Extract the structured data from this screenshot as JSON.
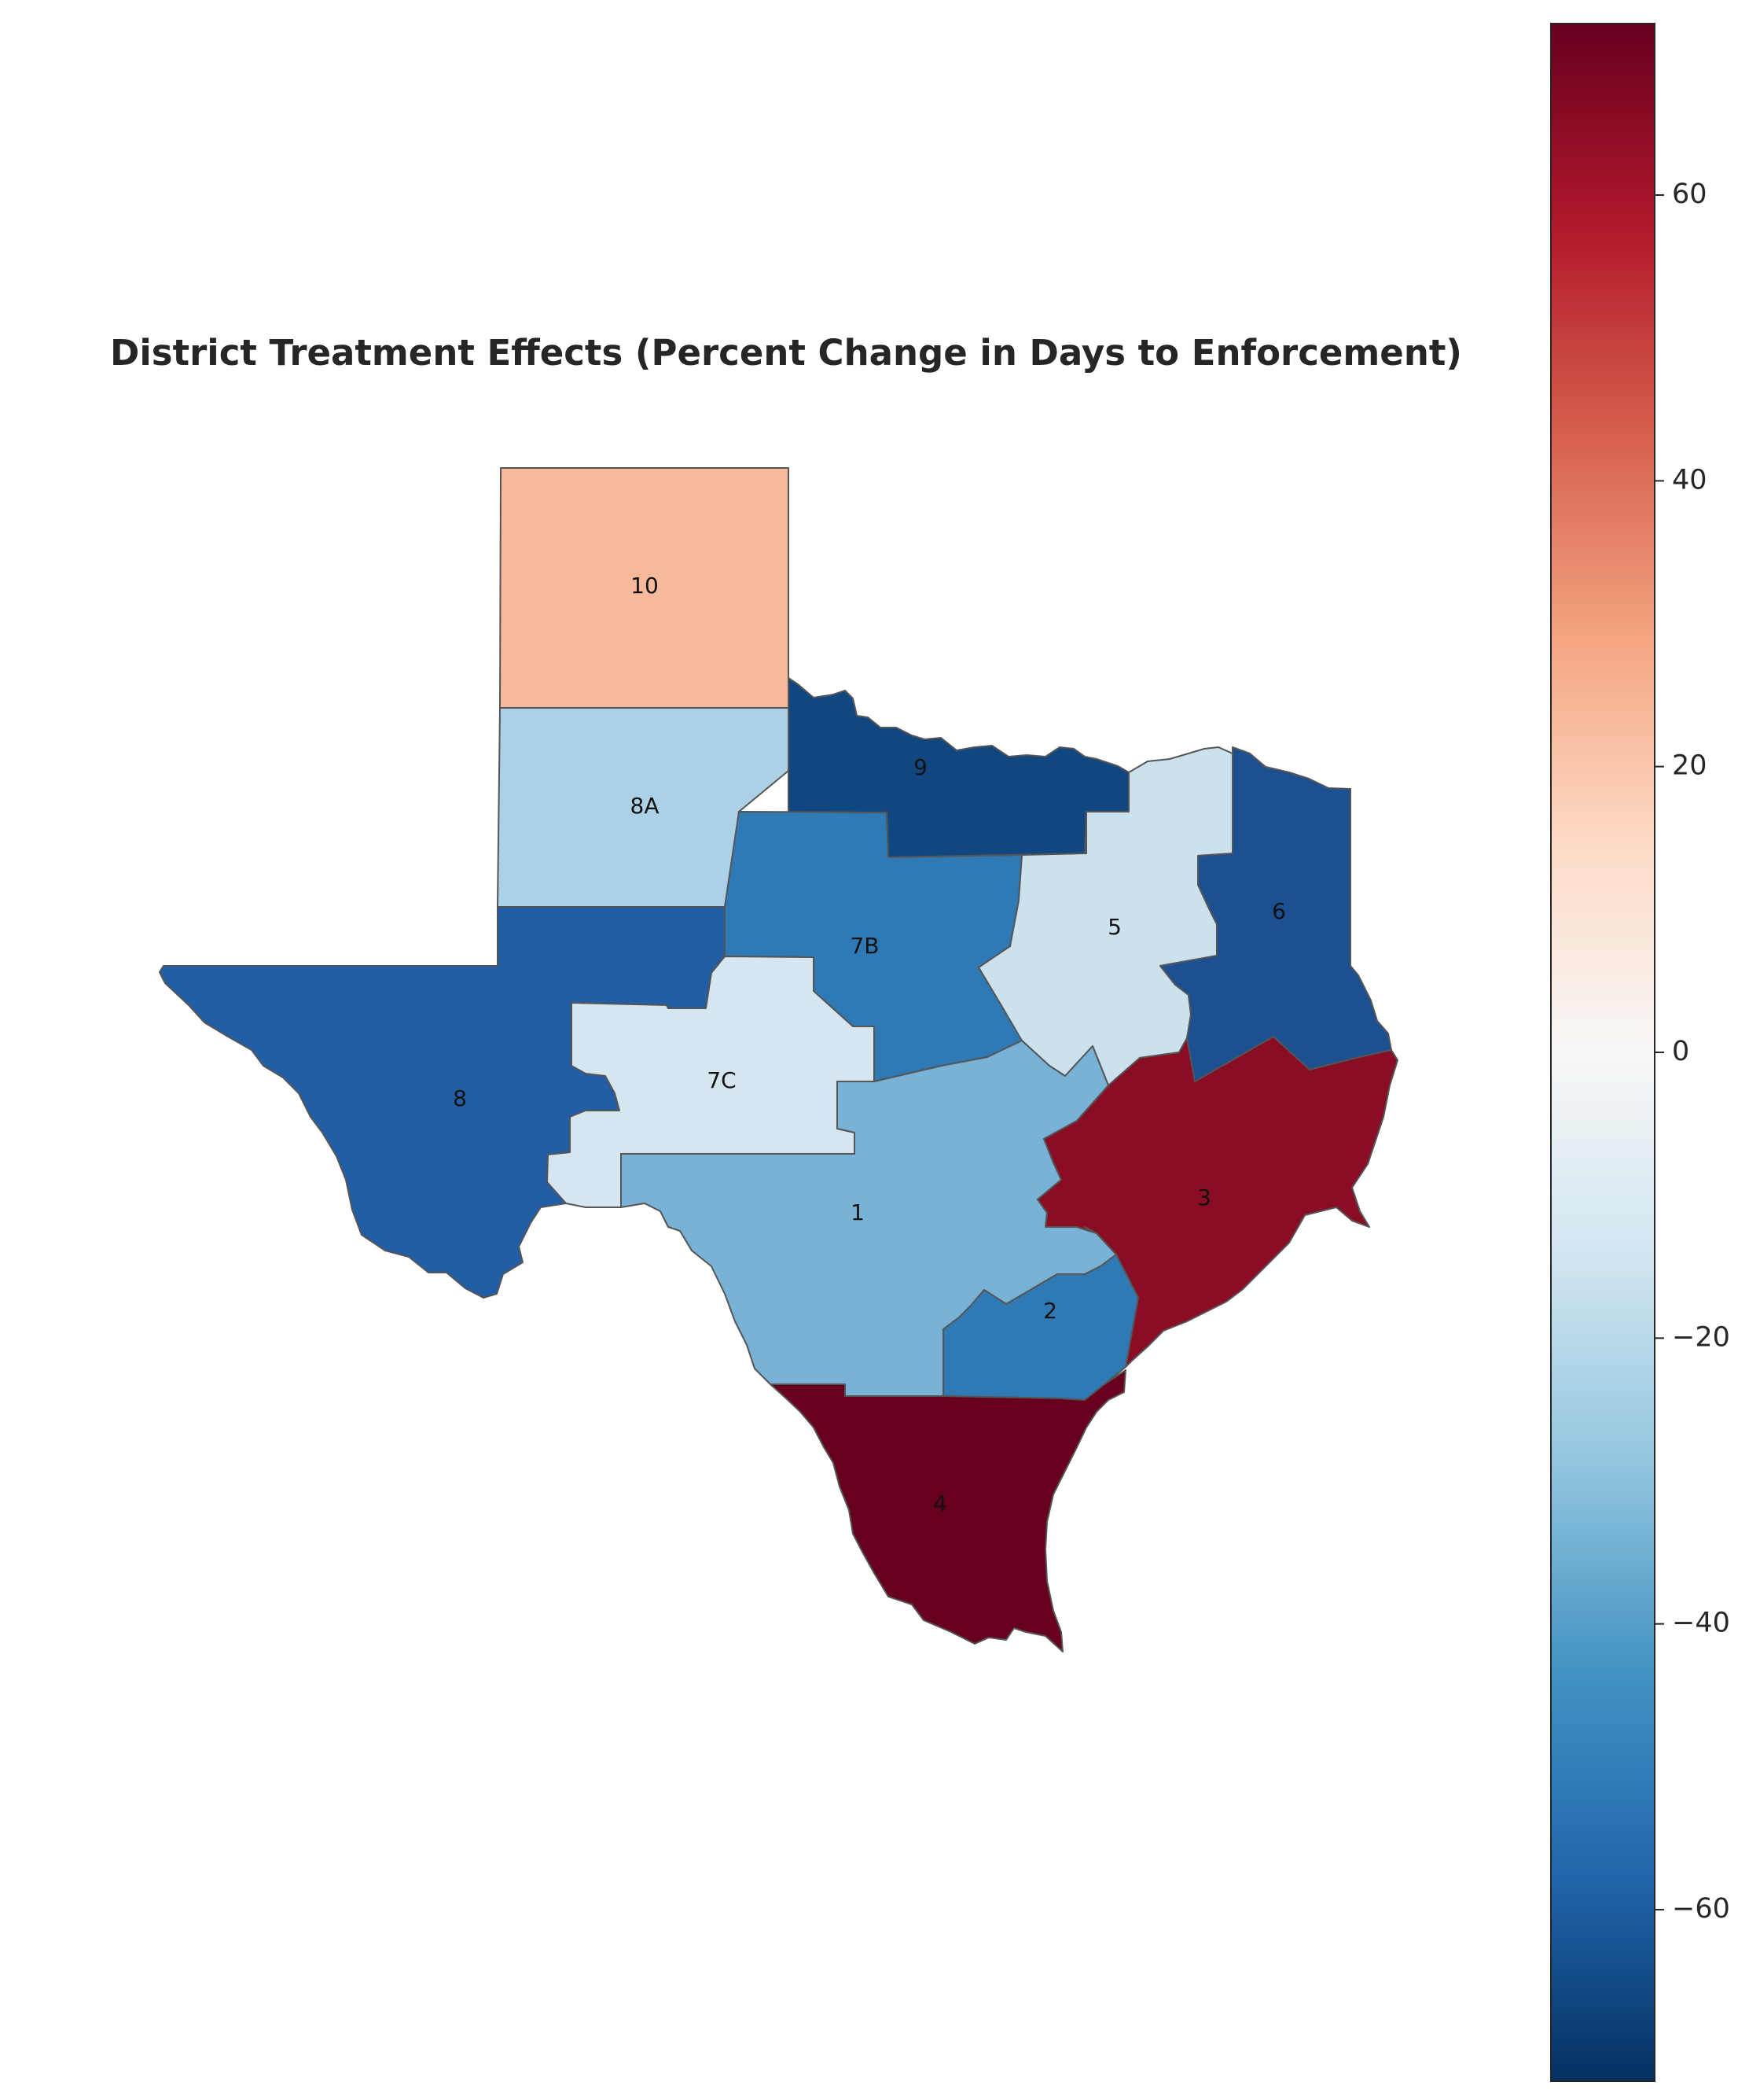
{
  "chart_data": {
    "type": "choropleth",
    "title": "District Treatment Effects (Percent Change in Days to Enforcement)",
    "colormap": "RdBu_r",
    "value_range": [
      -72,
      72
    ],
    "colorbar": {
      "orientation": "vertical",
      "ticks": [
        60,
        40,
        20,
        0,
        -20,
        -40,
        -60
      ],
      "tick_labels": [
        "60",
        "40",
        "20",
        "0",
        "−20",
        "−40",
        "−60"
      ]
    },
    "districts": [
      {
        "name": "10",
        "value": 19,
        "color": "#f6b99c"
      },
      {
        "name": "8A",
        "value": -26,
        "color": "#acd0e5"
      },
      {
        "name": "9",
        "value": -66,
        "color": "#114781"
      },
      {
        "name": "7B",
        "value": -50,
        "color": "#2f79b5"
      },
      {
        "name": "5",
        "value": -17,
        "color": "#cbe1ee"
      },
      {
        "name": "6",
        "value": -62,
        "color": "#1c5090"
      },
      {
        "name": "8",
        "value": -58,
        "color": "#215ea6"
      },
      {
        "name": "7C",
        "value": -13,
        "color": "#d6e6f1"
      },
      {
        "name": "1",
        "value": -35,
        "color": "#78b2d6"
      },
      {
        "name": "3",
        "value": 66,
        "color": "#8a0d26"
      },
      {
        "name": "2",
        "value": -50,
        "color": "#2f79b5"
      },
      {
        "name": "4",
        "value": 72,
        "color": "#67001f"
      }
    ]
  }
}
